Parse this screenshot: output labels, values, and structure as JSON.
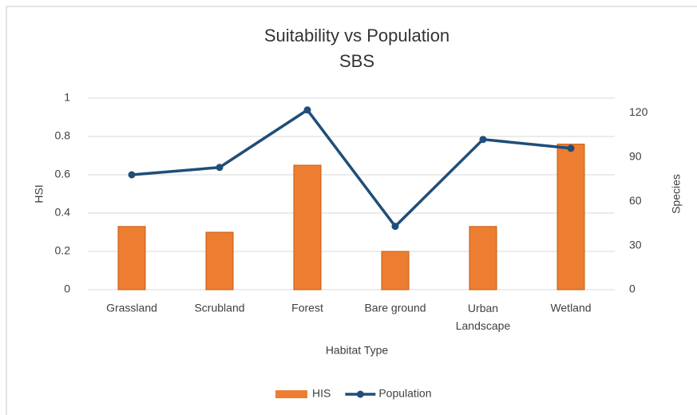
{
  "chart_data": {
    "type": "bar-line",
    "title": "Suitability vs Population",
    "subtitle": "SBS",
    "x_label": "Habitat Type",
    "y_label": "HSI",
    "y2_label": "Species",
    "categories": [
      "Grassland",
      "Scrubland",
      "Forest",
      "Bare ground",
      "Urban Landscape",
      "Wetland"
    ],
    "series": [
      {
        "name": "HIS",
        "type": "bar",
        "color": "#ed7d31",
        "values": [
          0.33,
          0.3,
          0.65,
          0.2,
          0.33,
          0.76
        ]
      },
      {
        "name": "Population",
        "type": "line",
        "axis": "y2",
        "color": "#1f4e79",
        "values": [
          78,
          83,
          122,
          43,
          102,
          96
        ]
      }
    ],
    "ylim": [
      0,
      1
    ],
    "yticks": [
      0,
      0.2,
      0.4,
      0.6,
      0.8,
      1
    ],
    "y2lim": [
      0,
      130
    ],
    "y2ticks": [
      0,
      30,
      60,
      90,
      120
    ],
    "grid": true,
    "legend": "bottom"
  }
}
